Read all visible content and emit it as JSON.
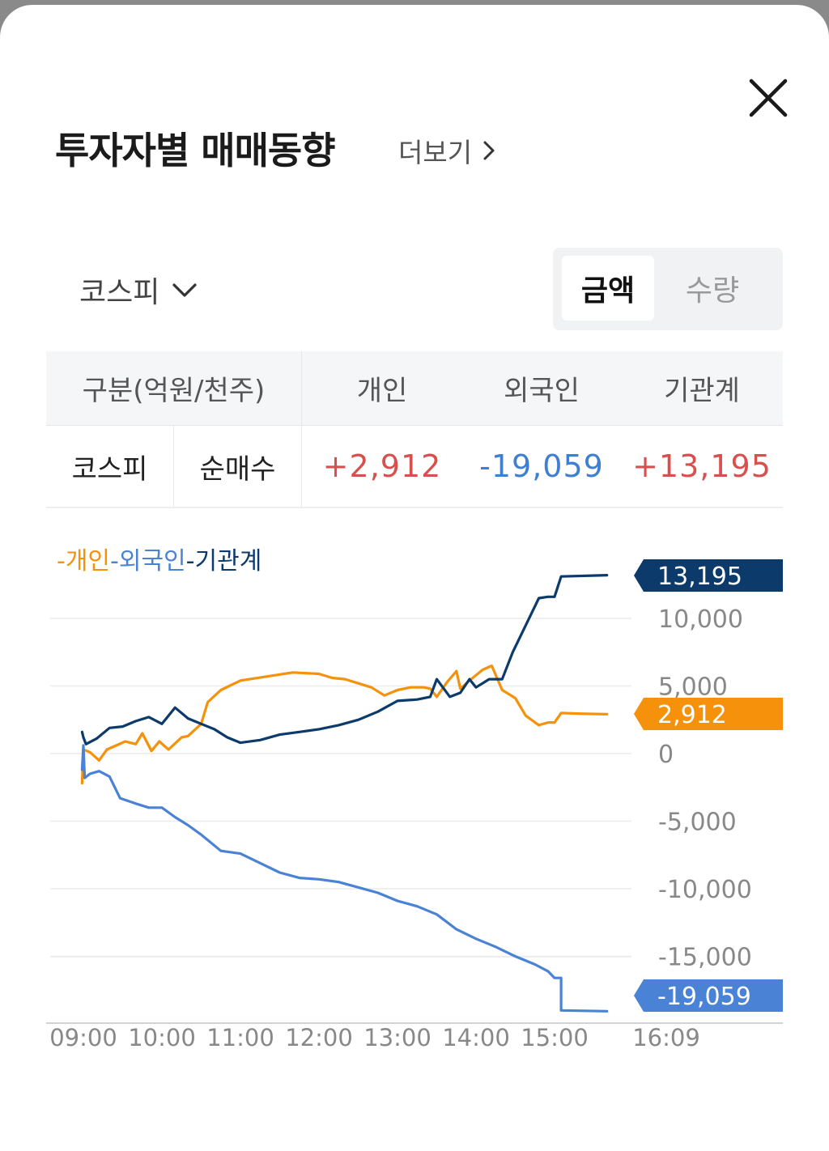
{
  "header": {
    "title": "투자자별 매매동향",
    "more_label": "더보기"
  },
  "controls": {
    "market_selected": "코스피",
    "toggle": [
      "금액",
      "수량"
    ],
    "toggle_active": "금액"
  },
  "table": {
    "header_label": "구분(억원/천주)",
    "columns": [
      "개인",
      "외국인",
      "기관계"
    ],
    "row": {
      "market": "코스피",
      "type": "순매수",
      "individual": "+2,912",
      "foreign": "-19,059",
      "institution": "+13,195"
    }
  },
  "legend": {
    "individual": "-개인",
    "foreign": "-외국인",
    "institution": "-기관계"
  },
  "colors": {
    "individual": "#f5910a",
    "foreign": "#4a82d6",
    "institution": "#0b3a6b",
    "positive": "#d8504e",
    "negative": "#3e7fd3"
  },
  "chart_data": {
    "type": "line",
    "x_ticks": [
      "09:00",
      "10:00",
      "11:00",
      "12:00",
      "13:00",
      "14:00",
      "15:00",
      "16:09"
    ],
    "y_ticks": [
      10000,
      5000,
      0,
      -5000,
      -10000,
      -15000
    ],
    "y_tick_labels": [
      "10,000",
      "5,000",
      "0",
      "-5,000",
      "-10,000",
      "-15,000"
    ],
    "ylim": [
      -19600,
      14000
    ],
    "grid": true,
    "end_labels": {
      "institution": "13,195",
      "individual": "2,912",
      "foreign": "-19,059"
    },
    "series": [
      {
        "name": "개인",
        "key": "individual",
        "points": [
          [
            "08:59",
            -2200
          ],
          [
            "09:00",
            300
          ],
          [
            "09:05",
            100
          ],
          [
            "09:12",
            -500
          ],
          [
            "09:18",
            300
          ],
          [
            "09:25",
            600
          ],
          [
            "09:32",
            900
          ],
          [
            "09:40",
            700
          ],
          [
            "09:45",
            1500
          ],
          [
            "09:52",
            200
          ],
          [
            "09:58",
            900
          ],
          [
            "10:05",
            300
          ],
          [
            "10:15",
            1200
          ],
          [
            "10:20",
            1300
          ],
          [
            "10:30",
            2200
          ],
          [
            "10:35",
            3800
          ],
          [
            "10:45",
            4700
          ],
          [
            "11:00",
            5400
          ],
          [
            "11:20",
            5700
          ],
          [
            "11:40",
            6000
          ],
          [
            "12:00",
            5900
          ],
          [
            "12:10",
            5600
          ],
          [
            "12:20",
            5500
          ],
          [
            "12:30",
            5200
          ],
          [
            "12:40",
            4900
          ],
          [
            "12:50",
            4300
          ],
          [
            "13:00",
            4700
          ],
          [
            "13:10",
            4900
          ],
          [
            "13:20",
            4900
          ],
          [
            "13:25",
            4800
          ],
          [
            "13:30",
            4200
          ],
          [
            "13:38",
            5300
          ],
          [
            "13:45",
            6100
          ],
          [
            "13:48",
            4800
          ],
          [
            "13:55",
            5400
          ],
          [
            "14:05",
            6200
          ],
          [
            "14:12",
            6500
          ],
          [
            "14:20",
            4700
          ],
          [
            "14:30",
            4100
          ],
          [
            "14:38",
            2800
          ],
          [
            "14:48",
            2100
          ],
          [
            "14:55",
            2300
          ],
          [
            "15:00",
            2300
          ],
          [
            "15:05",
            3000
          ],
          [
            "15:20",
            2950
          ],
          [
            "15:40",
            2912
          ]
        ]
      },
      {
        "name": "외국인",
        "key": "foreign",
        "points": [
          [
            "08:59",
            -1200
          ],
          [
            "09:00",
            600
          ],
          [
            "09:01",
            -1800
          ],
          [
            "09:05",
            -1500
          ],
          [
            "09:12",
            -1300
          ],
          [
            "09:20",
            -1700
          ],
          [
            "09:28",
            -3300
          ],
          [
            "09:40",
            -3700
          ],
          [
            "09:50",
            -4000
          ],
          [
            "10:00",
            -4000
          ],
          [
            "10:10",
            -4700
          ],
          [
            "10:20",
            -5300
          ],
          [
            "10:30",
            -6000
          ],
          [
            "10:45",
            -7200
          ],
          [
            "11:00",
            -7400
          ],
          [
            "11:15",
            -8100
          ],
          [
            "11:30",
            -8800
          ],
          [
            "11:45",
            -9200
          ],
          [
            "12:00",
            -9300
          ],
          [
            "12:15",
            -9500
          ],
          [
            "12:30",
            -9900
          ],
          [
            "12:45",
            -10300
          ],
          [
            "13:00",
            -10900
          ],
          [
            "13:15",
            -11300
          ],
          [
            "13:30",
            -11900
          ],
          [
            "13:45",
            -13000
          ],
          [
            "14:00",
            -13700
          ],
          [
            "14:15",
            -14300
          ],
          [
            "14:30",
            -15000
          ],
          [
            "14:45",
            -15600
          ],
          [
            "14:55",
            -16100
          ],
          [
            "15:00",
            -16600
          ],
          [
            "15:05",
            -16600
          ],
          [
            "15:05",
            -19000
          ],
          [
            "15:40",
            -19059
          ]
        ]
      },
      {
        "name": "기관계",
        "key": "institution",
        "points": [
          [
            "08:59",
            1600
          ],
          [
            "09:00",
            1200
          ],
          [
            "09:02",
            700
          ],
          [
            "09:10",
            1100
          ],
          [
            "09:20",
            1900
          ],
          [
            "09:30",
            2000
          ],
          [
            "09:40",
            2400
          ],
          [
            "09:50",
            2700
          ],
          [
            "10:00",
            2200
          ],
          [
            "10:10",
            3400
          ],
          [
            "10:20",
            2600
          ],
          [
            "10:30",
            2200
          ],
          [
            "10:40",
            1800
          ],
          [
            "10:50",
            1200
          ],
          [
            "11:00",
            800
          ],
          [
            "11:15",
            1000
          ],
          [
            "11:30",
            1400
          ],
          [
            "11:45",
            1600
          ],
          [
            "12:00",
            1800
          ],
          [
            "12:15",
            2100
          ],
          [
            "12:30",
            2500
          ],
          [
            "12:45",
            3100
          ],
          [
            "13:00",
            3900
          ],
          [
            "13:15",
            4000
          ],
          [
            "13:25",
            4200
          ],
          [
            "13:30",
            5500
          ],
          [
            "13:40",
            4200
          ],
          [
            "13:48",
            4500
          ],
          [
            "13:55",
            5500
          ],
          [
            "14:00",
            4900
          ],
          [
            "14:10",
            5500
          ],
          [
            "14:20",
            5500
          ],
          [
            "14:28",
            7500
          ],
          [
            "14:40",
            9900
          ],
          [
            "14:48",
            11500
          ],
          [
            "14:55",
            11600
          ],
          [
            "15:00",
            11600
          ],
          [
            "15:05",
            13100
          ],
          [
            "15:40",
            13195
          ]
        ]
      }
    ]
  }
}
